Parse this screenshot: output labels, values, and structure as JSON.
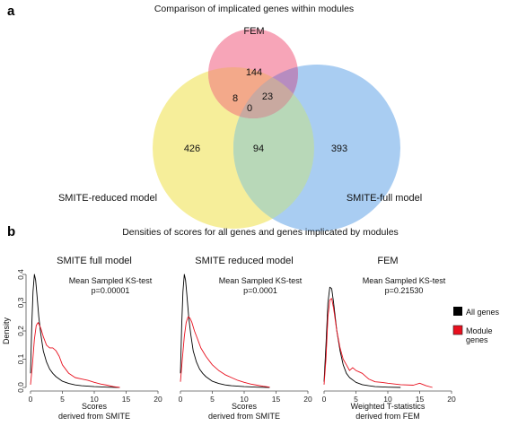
{
  "panel_a": {
    "letter": "a",
    "title": "Comparison of implicated genes within modules",
    "sets": [
      {
        "name": "FEM",
        "color": "#f7a5b8"
      },
      {
        "name": "SMITE-reduced model",
        "color": "#f6ee9a"
      },
      {
        "name": "SMITE-full model",
        "color": "#a9cdf2"
      }
    ],
    "colors": {
      "fem_reduced": "#f3a98a",
      "fem_full": "#b78cc0",
      "reduced_full": "#b8d8b8",
      "all": "#c9a9a0"
    },
    "counts": {
      "fem_only": "144",
      "reduced_only": "426",
      "full_only": "393",
      "fem_reduced": "8",
      "fem_full": "23",
      "reduced_full": "94",
      "all_three": "0"
    }
  },
  "panel_b": {
    "letter": "b",
    "title": "Densities of scores for all genes and genes implicated by modules",
    "legend": [
      {
        "label": "All genes",
        "color": "#000000"
      },
      {
        "label": "Module genes",
        "color": "#e8101e"
      }
    ]
  },
  "chart_data": [
    {
      "type": "line",
      "title": "SMITE full model",
      "annotation": [
        "Mean Sampled KS-test",
        "p=0.00001"
      ],
      "xlabel": [
        "Scores",
        "derived from SMITE"
      ],
      "ylabel": "Density",
      "xlim": [
        0,
        20
      ],
      "ylim": [
        0,
        0.4
      ],
      "xticks": [
        "0",
        "5",
        "10",
        "15",
        "20"
      ],
      "yticks": [
        "0.0",
        "0.1",
        "0.2",
        "0.3",
        "0.4"
      ],
      "series": [
        {
          "name": "All genes",
          "color": "#000000",
          "x": [
            0,
            0.2,
            0.4,
            0.6,
            0.8,
            1.0,
            1.3,
            1.6,
            2.0,
            2.5,
            3,
            3.5,
            4,
            5,
            6,
            7,
            8,
            10,
            12,
            14
          ],
          "y": [
            0.05,
            0.22,
            0.34,
            0.4,
            0.38,
            0.33,
            0.25,
            0.19,
            0.13,
            0.09,
            0.065,
            0.05,
            0.038,
            0.022,
            0.014,
            0.009,
            0.006,
            0.003,
            0.001,
            0.0
          ]
        },
        {
          "name": "Module genes",
          "color": "#e8101e",
          "x": [
            0,
            0.3,
            0.6,
            0.9,
            1.2,
            1.6,
            2.0,
            2.5,
            3.0,
            3.5,
            4.0,
            4.5,
            5.0,
            6.0,
            7.0,
            8.0,
            9.0,
            10,
            11,
            12,
            13,
            14
          ],
          "y": [
            0.01,
            0.08,
            0.17,
            0.22,
            0.23,
            0.21,
            0.18,
            0.15,
            0.14,
            0.14,
            0.13,
            0.11,
            0.08,
            0.05,
            0.035,
            0.03,
            0.025,
            0.018,
            0.012,
            0.008,
            0.003,
            0.0
          ]
        }
      ]
    },
    {
      "type": "line",
      "title": "SMITE reduced model",
      "annotation": [
        "Mean Sampled KS-test",
        "p=0.0001"
      ],
      "xlabel": [
        "Scores",
        "derived from SMITE"
      ],
      "xlim": [
        0,
        20
      ],
      "ylim": [
        0,
        0.4
      ],
      "xticks": [
        "0",
        "5",
        "10",
        "15",
        "20"
      ],
      "series": [
        {
          "name": "All genes",
          "color": "#000000",
          "x": [
            0,
            0.2,
            0.4,
            0.6,
            0.8,
            1.0,
            1.3,
            1.6,
            2.0,
            2.5,
            3,
            3.5,
            4,
            5,
            6,
            7,
            8,
            10,
            12,
            14
          ],
          "y": [
            0.05,
            0.22,
            0.34,
            0.4,
            0.38,
            0.33,
            0.25,
            0.19,
            0.13,
            0.09,
            0.065,
            0.05,
            0.038,
            0.022,
            0.014,
            0.009,
            0.006,
            0.003,
            0.001,
            0.0
          ]
        },
        {
          "name": "Module genes",
          "color": "#e8101e",
          "x": [
            0,
            0.3,
            0.6,
            0.9,
            1.2,
            1.5,
            1.8,
            2.2,
            2.7,
            3.2,
            4.0,
            5.0,
            6.0,
            7.0,
            8.0,
            9.0,
            10,
            11,
            12,
            13,
            14
          ],
          "y": [
            0.02,
            0.1,
            0.18,
            0.23,
            0.25,
            0.245,
            0.23,
            0.2,
            0.17,
            0.14,
            0.11,
            0.08,
            0.06,
            0.045,
            0.035,
            0.025,
            0.018,
            0.012,
            0.008,
            0.004,
            0.001
          ]
        }
      ]
    },
    {
      "type": "line",
      "title": "FEM",
      "annotation": [
        "Mean Sampled KS-test",
        "p=0.21530"
      ],
      "xlabel": [
        "Weighted T-statistics",
        "derived from FEM"
      ],
      "xlim": [
        0,
        20
      ],
      "ylim": [
        0,
        0.4
      ],
      "xticks": [
        "0",
        "5",
        "10",
        "15",
        "20"
      ],
      "series": [
        {
          "name": "All genes",
          "color": "#000000",
          "x": [
            0,
            0.3,
            0.6,
            0.9,
            1.2,
            1.5,
            2.0,
            2.5,
            3.0,
            3.5,
            4,
            5,
            6,
            7,
            8,
            10,
            12
          ],
          "y": [
            0.02,
            0.15,
            0.3,
            0.355,
            0.35,
            0.3,
            0.2,
            0.13,
            0.08,
            0.05,
            0.035,
            0.018,
            0.01,
            0.006,
            0.003,
            0.001,
            0.0
          ]
        },
        {
          "name": "Module genes",
          "color": "#e8101e",
          "x": [
            0,
            0.3,
            0.6,
            0.9,
            1.2,
            1.5,
            2.0,
            2.5,
            3.0,
            3.5,
            4.0,
            4.5,
            5.0,
            5.5,
            6.0,
            6.5,
            7.0,
            8.0,
            9.0,
            10,
            12,
            14,
            15,
            16,
            17
          ],
          "y": [
            0.01,
            0.1,
            0.25,
            0.31,
            0.315,
            0.28,
            0.2,
            0.14,
            0.1,
            0.08,
            0.06,
            0.07,
            0.06,
            0.055,
            0.05,
            0.04,
            0.03,
            0.02,
            0.018,
            0.015,
            0.01,
            0.008,
            0.015,
            0.006,
            0.0
          ]
        }
      ]
    }
  ]
}
